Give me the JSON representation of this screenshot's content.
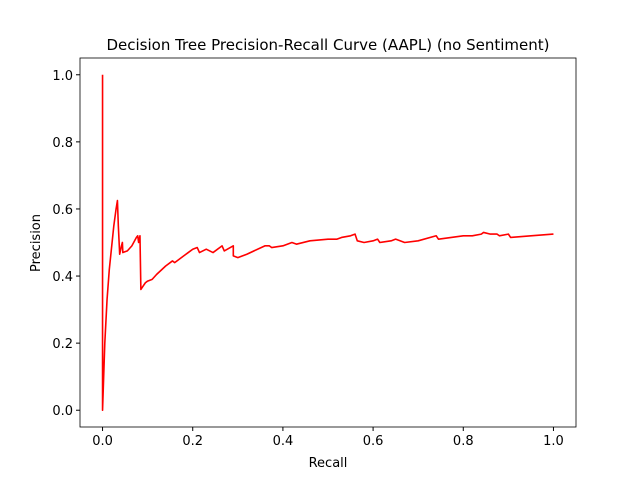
{
  "chart_data": {
    "type": "line",
    "title": "Decision Tree Precision-Recall Curve (AAPL) (no Sentiment)",
    "xlabel": "Recall",
    "ylabel": "Precision",
    "color": "#ff0000",
    "x": [
      0,
      0,
      0.005,
      0.01,
      0.015,
      0.025,
      0.03,
      0.033,
      0.035,
      0.038,
      0.042,
      0.044,
      0.045,
      0.055,
      0.065,
      0.075,
      0.078,
      0.08,
      0.083,
      0.085,
      0.09,
      0.095,
      0.1,
      0.11,
      0.12,
      0.14,
      0.155,
      0.16,
      0.17,
      0.18,
      0.19,
      0.2,
      0.21,
      0.215,
      0.23,
      0.245,
      0.265,
      0.27,
      0.29,
      0.29,
      0.3,
      0.32,
      0.36,
      0.37,
      0.375,
      0.4,
      0.42,
      0.43,
      0.46,
      0.5,
      0.52,
      0.53,
      0.55,
      0.56,
      0.565,
      0.58,
      0.6,
      0.61,
      0.615,
      0.64,
      0.65,
      0.67,
      0.7,
      0.74,
      0.745,
      0.8,
      0.82,
      0.84,
      0.845,
      0.86,
      0.875,
      0.88,
      0.9,
      0.905,
      0.95,
      1.0
    ],
    "values": [
      1.0,
      0.0,
      0.2,
      0.33,
      0.42,
      0.55,
      0.6,
      0.625,
      0.55,
      0.465,
      0.49,
      0.5,
      0.47,
      0.475,
      0.49,
      0.515,
      0.52,
      0.5,
      0.52,
      0.36,
      0.37,
      0.38,
      0.385,
      0.39,
      0.405,
      0.43,
      0.445,
      0.44,
      0.45,
      0.46,
      0.47,
      0.48,
      0.485,
      0.47,
      0.48,
      0.47,
      0.49,
      0.475,
      0.49,
      0.46,
      0.455,
      0.465,
      0.49,
      0.49,
      0.485,
      0.49,
      0.5,
      0.495,
      0.505,
      0.51,
      0.51,
      0.515,
      0.52,
      0.525,
      0.505,
      0.5,
      0.505,
      0.51,
      0.5,
      0.505,
      0.51,
      0.5,
      0.505,
      0.52,
      0.51,
      0.52,
      0.52,
      0.525,
      0.53,
      0.525,
      0.525,
      0.52,
      0.525,
      0.515,
      0.52,
      0.525
    ],
    "xlim": [
      -0.05,
      1.05
    ],
    "ylim": [
      -0.05,
      1.05
    ],
    "xticks": [
      {
        "value": 0,
        "label": "0.0"
      },
      {
        "value": 0.2,
        "label": "0.2"
      },
      {
        "value": 0.4,
        "label": "0.4"
      },
      {
        "value": 0.6,
        "label": "0.6"
      },
      {
        "value": 0.8,
        "label": "0.8"
      },
      {
        "value": 1,
        "label": "1.0"
      }
    ],
    "yticks": [
      {
        "value": 0,
        "label": "0.0"
      },
      {
        "value": 0.2,
        "label": "0.2"
      },
      {
        "value": 0.4,
        "label": "0.4"
      },
      {
        "value": 0.6,
        "label": "0.6"
      },
      {
        "value": 0.8,
        "label": "0.8"
      },
      {
        "value": 1,
        "label": "1.0"
      }
    ]
  }
}
